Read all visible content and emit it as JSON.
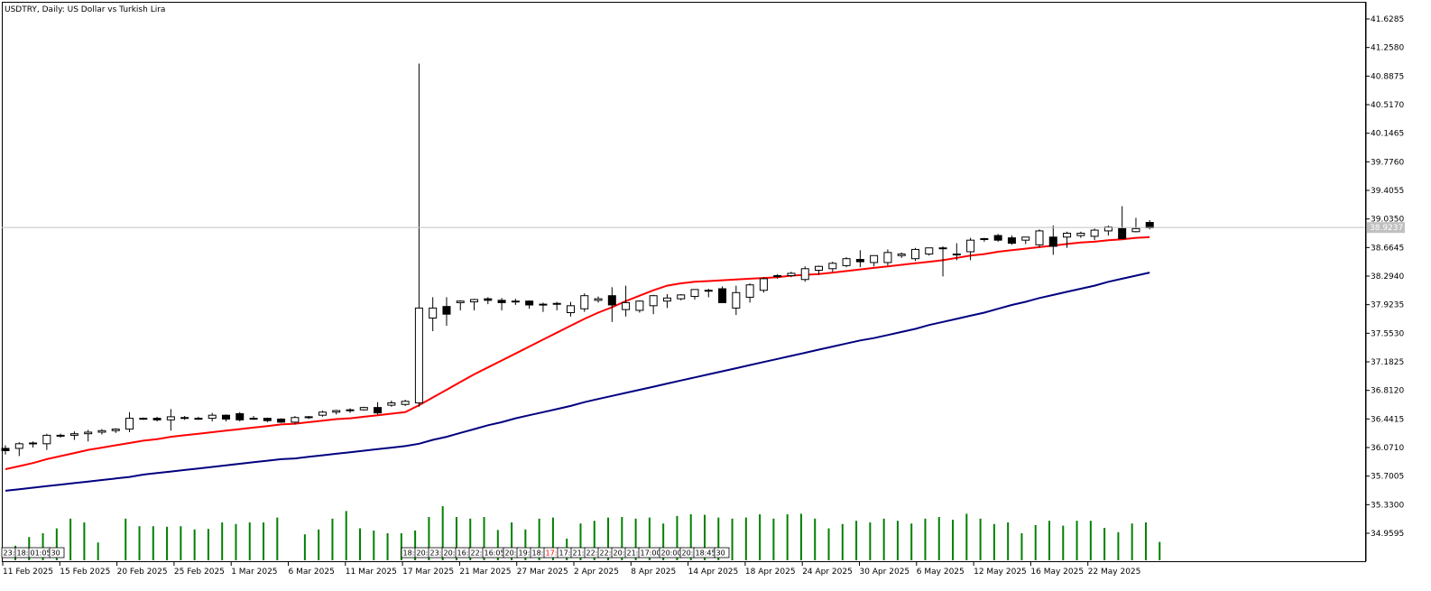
{
  "header": {
    "symbol": "USDTRY",
    "title": "USDTRY, Daily:  US Dollar vs Turkish Lira"
  },
  "colors": {
    "background": "#ffffff",
    "candle_border": "#000000",
    "bull_body": "#ffffff",
    "bear_body": "#000000",
    "ma_fast": "#ff0000",
    "ma_slow": "#000080",
    "volume": "#008000",
    "grid_line": "#c0c0c0",
    "current_price_tag": "#c0c0c0"
  },
  "price_axis": {
    "labels": [
      "41.6285",
      "41.2580",
      "40.8875",
      "40.5170",
      "40.1465",
      "39.7760",
      "39.4055",
      "39.0350",
      "38.6645",
      "38.2940",
      "37.9235",
      "37.5530",
      "37.1825",
      "36.8120",
      "36.4415",
      "36.0710",
      "35.7005",
      "35.3300",
      "34.9595"
    ],
    "current_price": "38.9237"
  },
  "time_axis": {
    "labels": [
      "11 Feb 2025",
      "15 Feb 2025",
      "20 Feb 2025",
      "25 Feb 2025",
      "1 Mar 2025",
      "6 Mar 2025",
      "11 Mar 2025",
      "17 Mar 2025",
      "21 Mar 2025",
      "27 Mar 2025",
      "2 Apr 2025",
      "8 Apr 2025",
      "14 Apr 2025",
      "18 Apr 2025",
      "24 Apr 2025",
      "30 Apr 2025",
      "6 May 2025",
      "12 May 2025",
      "16 May 2025",
      "22 May 2025"
    ]
  },
  "session_markers": {
    "group1": [
      "23:",
      "18:",
      "01:05",
      "30"
    ],
    "group2": [
      "18:",
      "20:",
      "23:",
      "20:",
      "16:",
      "22:",
      "16:05",
      "20:",
      "19:",
      "18:",
      "17:",
      "17:",
      "21:",
      "22:",
      "22:",
      "20:",
      "21:",
      "17:00",
      "20:00",
      "20:",
      "18:45",
      "30"
    ],
    "highlight_color": "#ff0000"
  },
  "chart_data": {
    "type": "candlestick",
    "title": "USDTRY, Daily:  US Dollar vs Turkish Lira",
    "ylim": [
      34.78,
      41.78
    ],
    "grid": false,
    "series": [
      {
        "name": "USDTRY",
        "kind": "ohlc"
      },
      {
        "kind": "line",
        "color": "#ff0000"
      },
      {
        "kind": "line",
        "color": "#000080"
      },
      {
        "kind": "volume",
        "color": "#008000"
      }
    ],
    "candles": [
      [
        36.06,
        36.1,
        35.98,
        36.03
      ],
      [
        36.06,
        36.14,
        35.96,
        36.12
      ],
      [
        36.12,
        36.15,
        36.07,
        36.13
      ],
      [
        36.12,
        36.25,
        36.04,
        36.23
      ],
      [
        36.22,
        36.25,
        36.2,
        36.23
      ],
      [
        36.23,
        36.28,
        36.17,
        36.25
      ],
      [
        36.25,
        36.3,
        36.15,
        36.27
      ],
      [
        36.27,
        36.31,
        36.24,
        36.29
      ],
      [
        36.29,
        36.32,
        36.26,
        36.31
      ],
      [
        36.31,
        36.53,
        36.27,
        36.45
      ],
      [
        36.44,
        36.46,
        36.43,
        36.45
      ],
      [
        36.45,
        36.47,
        36.41,
        36.43
      ],
      [
        36.43,
        36.57,
        36.29,
        36.47
      ],
      [
        36.46,
        36.48,
        36.43,
        36.45
      ],
      [
        36.45,
        36.47,
        36.43,
        36.45
      ],
      [
        36.45,
        36.52,
        36.41,
        36.49
      ],
      [
        36.49,
        36.5,
        36.41,
        36.44
      ],
      [
        36.51,
        36.53,
        36.41,
        36.43
      ],
      [
        36.45,
        36.48,
        36.43,
        36.45
      ],
      [
        36.45,
        36.46,
        36.4,
        36.42
      ],
      [
        36.44,
        36.45,
        36.39,
        36.4
      ],
      [
        36.4,
        36.48,
        36.37,
        36.46
      ],
      [
        36.46,
        36.48,
        36.44,
        36.47
      ],
      [
        36.49,
        36.55,
        36.47,
        36.53
      ],
      [
        36.53,
        36.56,
        36.5,
        36.55
      ],
      [
        36.55,
        36.58,
        36.52,
        36.56
      ],
      [
        36.56,
        36.6,
        36.55,
        36.59
      ],
      [
        36.59,
        36.66,
        36.5,
        36.52
      ],
      [
        36.62,
        36.68,
        36.6,
        36.65
      ],
      [
        36.63,
        36.69,
        36.61,
        36.67
      ],
      [
        36.65,
        41.05,
        36.6,
        37.88
      ],
      [
        37.75,
        38.02,
        37.58,
        37.88
      ],
      [
        37.9,
        38.02,
        37.65,
        37.8
      ],
      [
        37.95,
        37.98,
        37.85,
        37.97
      ],
      [
        37.96,
        38.0,
        37.85,
        37.99
      ],
      [
        38.0,
        38.02,
        37.93,
        37.98
      ],
      [
        37.98,
        38.01,
        37.85,
        37.95
      ],
      [
        37.96,
        38.0,
        37.92,
        37.97
      ],
      [
        37.97,
        37.98,
        37.87,
        37.92
      ],
      [
        37.92,
        37.95,
        37.83,
        37.93
      ],
      [
        37.94,
        37.96,
        37.85,
        37.93
      ],
      [
        37.82,
        37.96,
        37.77,
        37.91
      ],
      [
        37.87,
        38.07,
        37.83,
        38.04
      ],
      [
        37.98,
        38.03,
        37.95,
        38.0
      ],
      [
        38.04,
        38.15,
        37.7,
        37.92
      ],
      [
        37.86,
        38.17,
        37.77,
        37.95
      ],
      [
        37.85,
        37.98,
        37.82,
        37.97
      ],
      [
        37.91,
        38.05,
        37.8,
        38.04
      ],
      [
        37.97,
        38.06,
        37.88,
        38.01
      ],
      [
        38.0,
        38.06,
        37.98,
        38.05
      ],
      [
        38.03,
        38.08,
        37.99,
        38.12
      ],
      [
        38.11,
        38.13,
        38.02,
        38.11
      ],
      [
        38.13,
        38.16,
        37.95,
        37.95
      ],
      [
        37.88,
        38.17,
        37.79,
        38.08
      ],
      [
        38.02,
        38.2,
        37.95,
        38.18
      ],
      [
        38.11,
        38.28,
        38.08,
        38.26
      ],
      [
        38.29,
        38.32,
        38.26,
        38.3
      ],
      [
        38.3,
        38.35,
        38.28,
        38.33
      ],
      [
        38.25,
        38.42,
        38.22,
        38.39
      ],
      [
        38.37,
        38.43,
        38.31,
        38.42
      ],
      [
        38.39,
        38.48,
        38.35,
        38.46
      ],
      [
        38.43,
        38.54,
        38.41,
        38.52
      ],
      [
        38.51,
        38.63,
        38.41,
        38.48
      ],
      [
        38.47,
        38.55,
        38.42,
        38.56
      ],
      [
        38.47,
        38.64,
        38.43,
        38.6
      ],
      [
        38.56,
        38.6,
        38.53,
        38.58
      ],
      [
        38.52,
        38.66,
        38.49,
        38.64
      ],
      [
        38.58,
        38.64,
        38.56,
        38.66
      ],
      [
        38.65,
        38.68,
        38.29,
        38.66
      ],
      [
        38.57,
        38.72,
        38.5,
        38.58
      ],
      [
        38.61,
        38.79,
        38.5,
        38.76
      ],
      [
        38.77,
        38.79,
        38.74,
        38.78
      ],
      [
        38.82,
        38.84,
        38.74,
        38.76
      ],
      [
        38.79,
        38.82,
        38.7,
        38.72
      ],
      [
        38.76,
        38.8,
        38.71,
        38.8
      ],
      [
        38.7,
        38.9,
        38.67,
        38.88
      ],
      [
        38.8,
        38.95,
        38.57,
        38.68
      ],
      [
        38.8,
        38.87,
        38.66,
        38.85
      ],
      [
        38.82,
        38.87,
        38.79,
        38.85
      ],
      [
        38.81,
        38.91,
        38.76,
        38.89
      ],
      [
        38.88,
        38.95,
        38.82,
        38.93
      ],
      [
        38.91,
        39.2,
        38.8,
        38.78
      ],
      [
        38.87,
        39.05,
        38.86,
        38.91
      ],
      [
        38.99,
        39.02,
        38.9,
        38.92
      ]
    ],
    "ma_fast": [
      35.79,
      35.83,
      35.87,
      35.92,
      35.96,
      36.0,
      36.04,
      36.07,
      36.1,
      36.13,
      36.16,
      36.18,
      36.21,
      36.23,
      36.25,
      36.27,
      36.29,
      36.31,
      36.33,
      36.35,
      36.37,
      36.38,
      36.4,
      36.42,
      36.44,
      36.45,
      36.47,
      36.49,
      36.51,
      36.53,
      36.62,
      36.72,
      36.82,
      36.92,
      37.02,
      37.11,
      37.2,
      37.29,
      37.38,
      37.47,
      37.56,
      37.65,
      37.74,
      37.82,
      37.89,
      37.97,
      38.04,
      38.11,
      38.17,
      38.2,
      38.22,
      38.23,
      38.24,
      38.25,
      38.26,
      38.27,
      38.28,
      38.3,
      38.31,
      38.32,
      38.34,
      38.36,
      38.38,
      38.4,
      38.42,
      38.44,
      38.46,
      38.48,
      38.5,
      38.53,
      38.56,
      38.58,
      38.61,
      38.63,
      38.65,
      38.67,
      38.69,
      38.71,
      38.73,
      38.74,
      38.76,
      38.77,
      38.79,
      38.8
    ],
    "ma_slow": [
      35.51,
      35.53,
      35.55,
      35.57,
      35.59,
      35.61,
      35.63,
      35.65,
      35.67,
      35.69,
      35.72,
      35.74,
      35.76,
      35.78,
      35.8,
      35.82,
      35.84,
      35.86,
      35.88,
      35.9,
      35.92,
      35.93,
      35.95,
      35.97,
      35.99,
      36.01,
      36.03,
      36.05,
      36.07,
      36.09,
      36.12,
      36.17,
      36.21,
      36.26,
      36.31,
      36.36,
      36.4,
      36.45,
      36.49,
      36.53,
      36.57,
      36.61,
      36.66,
      36.7,
      36.74,
      36.78,
      36.82,
      36.86,
      36.9,
      36.94,
      36.98,
      37.02,
      37.06,
      37.1,
      37.14,
      37.18,
      37.22,
      37.26,
      37.3,
      37.34,
      37.38,
      37.42,
      37.46,
      37.49,
      37.53,
      37.57,
      37.61,
      37.66,
      37.7,
      37.74,
      37.78,
      37.82,
      37.87,
      37.92,
      37.96,
      38.01,
      38.05,
      38.09,
      38.13,
      38.17,
      38.22,
      38.26,
      38.3,
      38.34
    ],
    "volume": [
      0.27,
      0.43,
      0.5,
      0.59,
      0.77,
      0.7,
      0.33,
      0.0,
      0.77,
      0.63,
      0.63,
      0.62,
      0.63,
      0.57,
      0.58,
      0.7,
      0.67,
      0.7,
      0.7,
      0.79,
      0.0,
      0.48,
      0.57,
      0.77,
      0.91,
      0.59,
      0.55,
      0.5,
      0.5,
      0.55,
      0.8,
      1.0,
      0.8,
      0.77,
      0.8,
      0.56,
      0.7,
      0.57,
      0.77,
      0.79,
      0.4,
      0.68,
      0.73,
      0.79,
      0.8,
      0.77,
      0.79,
      0.68,
      0.82,
      0.85,
      0.84,
      0.79,
      0.77,
      0.79,
      0.85,
      0.77,
      0.85,
      0.86,
      0.77,
      0.59,
      0.67,
      0.73,
      0.7,
      0.77,
      0.73,
      0.68,
      0.77,
      0.8,
      0.75,
      0.86,
      0.77,
      0.67,
      0.7,
      0.5,
      0.65,
      0.73,
      0.64,
      0.73,
      0.73,
      0.6,
      0.52,
      0.68,
      0.7,
      0.34
    ]
  }
}
